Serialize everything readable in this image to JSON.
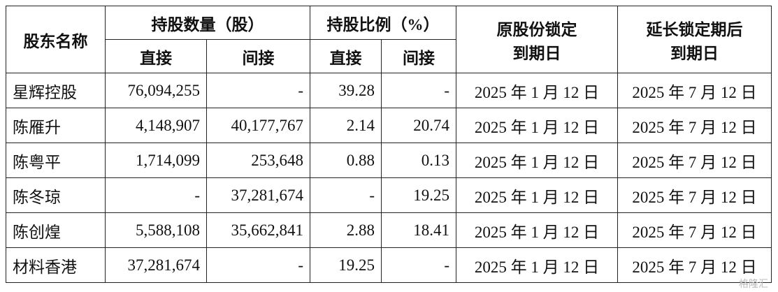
{
  "table": {
    "header": {
      "shareholder": "股东名称",
      "shares": "持股数量（股）",
      "ratio": "持股比例（%）",
      "original_lock": [
        "原股份锁定",
        "到期日"
      ],
      "extended_lock": [
        "延长锁定期后",
        "到期日"
      ],
      "sub": [
        "直接",
        "间接",
        "直接",
        "间接"
      ]
    },
    "rows": [
      [
        "星辉控股",
        "76,094,255",
        "-",
        "39.28",
        "-",
        "2025 年 1 月 12 日",
        "2025 年 7 月 12 日"
      ],
      [
        "陈雁升",
        "4,148,907",
        "40,177,767",
        "2.14",
        "20.74",
        "2025 年 1 月 12 日",
        "2025 年 7 月 12 日"
      ],
      [
        "陈粤平",
        "1,714,099",
        "253,648",
        "0.88",
        "0.13",
        "2025 年 1 月 12 日",
        "2025 年 7 月 12 日"
      ],
      [
        "陈冬琼",
        "-",
        "37,281,674",
        "-",
        "19.25",
        "2025 年 1 月 12 日",
        "2025 年 7 月 12 日"
      ],
      [
        "陈创煌",
        "5,588,108",
        "35,662,841",
        "2.88",
        "18.41",
        "2025 年 1 月 12 日",
        "2025 年 7 月 12 日"
      ],
      [
        "材料香港",
        "37,281,674",
        "-",
        "19.25",
        "-",
        "2025 年 1 月 12 日",
        "2025 年 7 月 12 日"
      ]
    ]
  },
  "watermark": "格隆汇"
}
